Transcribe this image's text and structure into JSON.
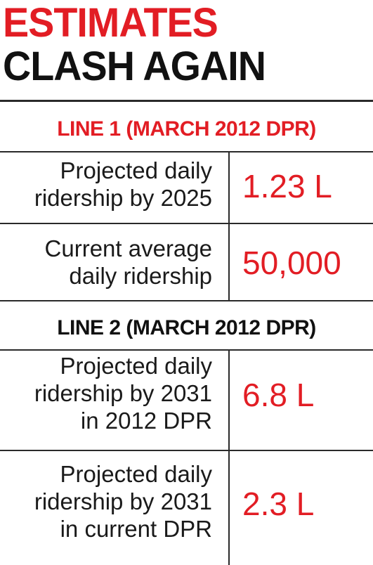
{
  "headline": {
    "line1": "ESTIMATES",
    "line2": "CLASH AGAIN"
  },
  "colors": {
    "accent": "#e21d24",
    "text": "#111111",
    "rule": "#2a2a2a"
  },
  "sections": [
    {
      "heading": "LINE 1 (MARCH 2012 DPR)",
      "rows": [
        {
          "label_lines": [
            "Projected daily",
            "ridership by 2025"
          ],
          "value": "1.23 L"
        },
        {
          "label_lines": [
            "Current average",
            "daily ridership"
          ],
          "value": "50,000"
        }
      ]
    },
    {
      "heading": "LINE 2 (MARCH 2012 DPR)",
      "rows": [
        {
          "label_lines": [
            "Projected daily",
            "ridership by 2031",
            "in 2012 DPR"
          ],
          "value": "6.8 L"
        },
        {
          "label_lines": [
            "Projected daily",
            "ridership by 2031",
            "in current DPR"
          ],
          "value": "2.3 L"
        }
      ]
    }
  ]
}
